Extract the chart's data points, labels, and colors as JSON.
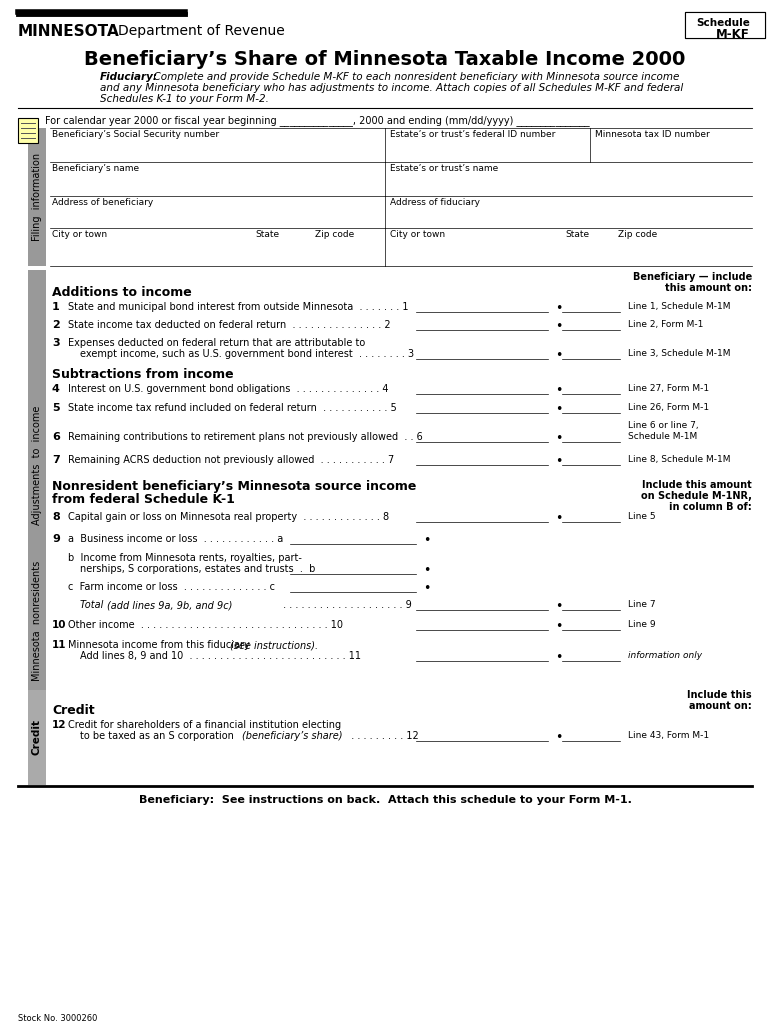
{
  "title": "Beneficiary’s Share of Minnesota Taxable Income 2000",
  "schedule_label": "Schedule\nM-KF",
  "header_agency_bold": "MINNESOTA",
  "header_agency_normal": "Department of Revenue",
  "fiduciary_bold": "Fiduciary:",
  "fiduciary_line1": "  Complete and provide Schedule M-KF to each nonresident beneficiary with Minnesota source income",
  "fiduciary_line2": "and any Minnesota beneficiary who has adjustments to income. Attach copies of all Schedules M-KF and federal",
  "fiduciary_line3": "Schedules K-1 to your Form M-2.",
  "calendar_line": "For calendar year 2000 or fiscal year beginning _______________, 2000 and ending (mm/dd/yyyy) _______________",
  "filing_label": "Filing  information",
  "adjustments_label": "Adjustments  to  income",
  "mn_nonresidents_label": "Minnesota  nonresidents",
  "credit_label": "Credit",
  "beneficiary_include_line1": "Beneficiary — include",
  "beneficiary_include_line2": "this amount on:",
  "include_schedule_line1": "Include this amount",
  "include_schedule_line2": "on Schedule M-1NR,",
  "include_schedule_line3": "in column B of:",
  "include_credit_line1": "Include this",
  "include_credit_line2": "amount on:",
  "footer": "Beneficiary:  See instructions on back.  Attach this schedule to your Form M-1.",
  "stock_no": "Stock No. 3000260",
  "bg_color": "#ffffff",
  "bar_gray": "#999999",
  "bar_light_gray": "#aaaaaa"
}
